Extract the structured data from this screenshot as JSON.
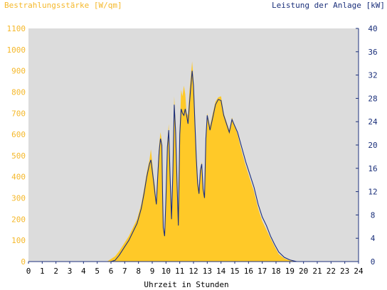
{
  "chart_data": {
    "type": "area",
    "title_left": "Bestrahlungsstärke [W/qm]",
    "title_right": "Leistung der Anlage [kW]",
    "xlabel": "Uhrzeit in Stunden",
    "xlim": [
      0,
      24
    ],
    "x_ticks": [
      "0",
      "1",
      "2",
      "3",
      "4",
      "5",
      "6",
      "7",
      "8",
      "9",
      "10",
      "11",
      "12",
      "13",
      "14",
      "15",
      "16",
      "17",
      "18",
      "19",
      "20",
      "21",
      "22",
      "23",
      "24"
    ],
    "y_left": {
      "lim": [
        0,
        1100
      ],
      "ticks": [
        "0",
        "100",
        "200",
        "300",
        "400",
        "500",
        "600",
        "700",
        "800",
        "900",
        "1000",
        "1100"
      ],
      "color": "#f7c22a"
    },
    "y_right": {
      "lim": [
        0,
        40
      ],
      "ticks": [
        "0",
        "4",
        "8",
        "12",
        "16",
        "20",
        "24",
        "28",
        "32",
        "36",
        "40"
      ],
      "color": "#1a2f7a"
    },
    "colors": {
      "plot_bg": "#dcdcdc",
      "fill": "#ffc928",
      "line": "#1c2f7d",
      "left_axis_text": "#f5b82a",
      "right_axis_text": "#1a2f7a"
    },
    "grid": false,
    "series": [
      {
        "axis": "left",
        "kind": "filled-area",
        "points": [
          [
            0,
            0
          ],
          [
            5.7,
            0
          ],
          [
            6.0,
            12
          ],
          [
            6.3,
            25
          ],
          [
            6.6,
            50
          ],
          [
            7.0,
            90
          ],
          [
            7.3,
            120
          ],
          [
            7.6,
            160
          ],
          [
            7.9,
            200
          ],
          [
            8.2,
            270
          ],
          [
            8.4,
            340
          ],
          [
            8.6,
            420
          ],
          [
            8.8,
            480
          ],
          [
            8.9,
            530
          ],
          [
            9.0,
            470
          ],
          [
            9.1,
            400
          ],
          [
            9.2,
            350
          ],
          [
            9.3,
            280
          ],
          [
            9.4,
            430
          ],
          [
            9.5,
            550
          ],
          [
            9.6,
            610
          ],
          [
            9.7,
            570
          ],
          [
            9.75,
            330
          ],
          [
            9.8,
            170
          ],
          [
            9.9,
            130
          ],
          [
            10.0,
            320
          ],
          [
            10.1,
            560
          ],
          [
            10.2,
            650
          ],
          [
            10.3,
            430
          ],
          [
            10.4,
            220
          ],
          [
            10.5,
            450
          ],
          [
            10.6,
            780
          ],
          [
            10.7,
            650
          ],
          [
            10.8,
            420
          ],
          [
            10.9,
            180
          ],
          [
            11.0,
            620
          ],
          [
            11.1,
            810
          ],
          [
            11.2,
            780
          ],
          [
            11.3,
            830
          ],
          [
            11.4,
            790
          ],
          [
            11.5,
            700
          ],
          [
            11.6,
            690
          ],
          [
            11.7,
            800
          ],
          [
            11.8,
            870
          ],
          [
            11.9,
            945
          ],
          [
            12.0,
            860
          ],
          [
            12.1,
            700
          ],
          [
            12.2,
            520
          ],
          [
            12.3,
            400
          ],
          [
            12.4,
            330
          ],
          [
            12.5,
            440
          ],
          [
            12.6,
            470
          ],
          [
            12.7,
            360
          ],
          [
            12.8,
            310
          ],
          [
            12.9,
            600
          ],
          [
            13.0,
            700
          ],
          [
            13.2,
            640
          ],
          [
            13.4,
            700
          ],
          [
            13.6,
            755
          ],
          [
            13.8,
            775
          ],
          [
            14.0,
            780
          ],
          [
            14.2,
            700
          ],
          [
            14.4,
            660
          ],
          [
            14.6,
            620
          ],
          [
            14.8,
            680
          ],
          [
            15.0,
            640
          ],
          [
            15.2,
            600
          ],
          [
            15.5,
            520
          ],
          [
            15.8,
            450
          ],
          [
            16.1,
            390
          ],
          [
            16.4,
            330
          ],
          [
            16.7,
            250
          ],
          [
            17.0,
            190
          ],
          [
            17.3,
            150
          ],
          [
            17.6,
            110
          ],
          [
            17.9,
            70
          ],
          [
            18.2,
            35
          ],
          [
            18.6,
            15
          ],
          [
            19.0,
            5
          ],
          [
            19.6,
            0
          ],
          [
            24,
            0
          ]
        ]
      },
      {
        "axis": "left",
        "kind": "line",
        "points": [
          [
            0,
            0
          ],
          [
            6.0,
            0
          ],
          [
            6.3,
            6
          ],
          [
            6.6,
            30
          ],
          [
            7.0,
            70
          ],
          [
            7.3,
            100
          ],
          [
            7.6,
            140
          ],
          [
            7.9,
            180
          ],
          [
            8.2,
            250
          ],
          [
            8.4,
            320
          ],
          [
            8.6,
            400
          ],
          [
            8.8,
            460
          ],
          [
            8.9,
            480
          ],
          [
            9.0,
            430
          ],
          [
            9.1,
            380
          ],
          [
            9.2,
            320
          ],
          [
            9.3,
            270
          ],
          [
            9.4,
            400
          ],
          [
            9.5,
            520
          ],
          [
            9.6,
            580
          ],
          [
            9.7,
            550
          ],
          [
            9.75,
            320
          ],
          [
            9.8,
            160
          ],
          [
            9.9,
            120
          ],
          [
            10.0,
            300
          ],
          [
            10.1,
            540
          ],
          [
            10.2,
            620
          ],
          [
            10.3,
            400
          ],
          [
            10.4,
            200
          ],
          [
            10.5,
            420
          ],
          [
            10.6,
            740
          ],
          [
            10.7,
            610
          ],
          [
            10.8,
            380
          ],
          [
            10.9,
            170
          ],
          [
            11.0,
            600
          ],
          [
            11.1,
            720
          ],
          [
            11.2,
            700
          ],
          [
            11.3,
            690
          ],
          [
            11.4,
            720
          ],
          [
            11.5,
            690
          ],
          [
            11.6,
            650
          ],
          [
            11.7,
            740
          ],
          [
            11.8,
            820
          ],
          [
            11.9,
            900
          ],
          [
            12.0,
            830
          ],
          [
            12.1,
            660
          ],
          [
            12.2,
            490
          ],
          [
            12.3,
            370
          ],
          [
            12.4,
            320
          ],
          [
            12.5,
            430
          ],
          [
            12.6,
            460
          ],
          [
            12.7,
            340
          ],
          [
            12.8,
            300
          ],
          [
            12.9,
            580
          ],
          [
            13.0,
            690
          ],
          [
            13.2,
            620
          ],
          [
            13.4,
            680
          ],
          [
            13.6,
            740
          ],
          [
            13.8,
            765
          ],
          [
            14.0,
            760
          ],
          [
            14.2,
            690
          ],
          [
            14.4,
            650
          ],
          [
            14.6,
            610
          ],
          [
            14.8,
            670
          ],
          [
            15.0,
            640
          ],
          [
            15.2,
            610
          ],
          [
            15.5,
            540
          ],
          [
            15.8,
            470
          ],
          [
            16.1,
            410
          ],
          [
            16.4,
            350
          ],
          [
            16.7,
            270
          ],
          [
            17.0,
            210
          ],
          [
            17.3,
            170
          ],
          [
            17.6,
            120
          ],
          [
            17.9,
            80
          ],
          [
            18.2,
            45
          ],
          [
            18.6,
            20
          ],
          [
            19.0,
            8
          ],
          [
            19.5,
            0
          ],
          [
            24,
            0
          ]
        ]
      }
    ]
  }
}
